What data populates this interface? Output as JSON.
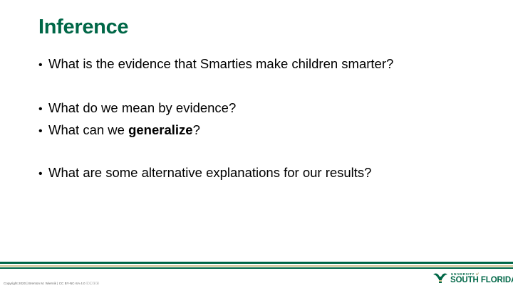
{
  "slide": {
    "title": "Inference",
    "bullets": [
      {
        "text": "What is the evidence that Smarties make children smarter?"
      },
      {
        "text": "What do we mean by evidence?"
      },
      {
        "pre": "What can we ",
        "bold": "generalize",
        "post": "?"
      },
      {
        "text": "What are some alternative explanations for our results?"
      }
    ],
    "bullet_glyph": "•"
  },
  "footer": {
    "copyright": "Copyright 2020 | Brenton M. Wiernik | CC BY-NC-SA 4.0 ⓒⓘⓢⓐ",
    "logo": {
      "top_line": "UNIVERSITY",
      "of_word": "of",
      "main_line": "SOUTH FLORIDA",
      "icon": "usf-bull-horns-icon"
    },
    "colors": {
      "green": "#006747",
      "gold": "#cfc493"
    }
  }
}
